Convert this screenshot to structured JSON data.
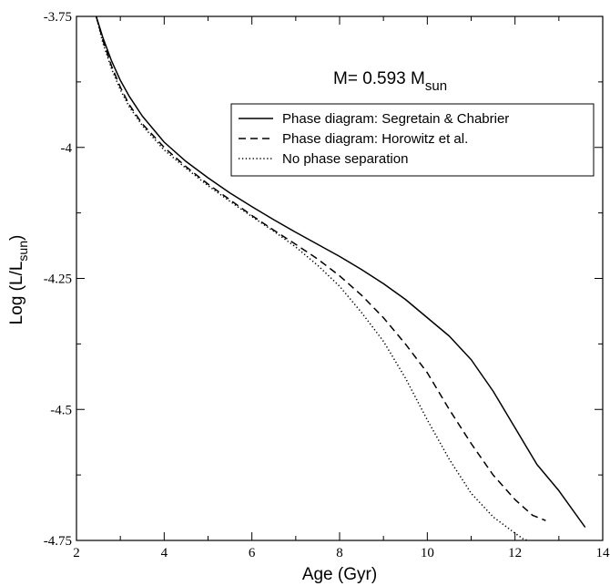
{
  "chart_data": {
    "type": "line",
    "xlabel": "Age (Gyr)",
    "ylabel_main": "Log (L/L",
    "ylabel_sub": "sun",
    "ylabel_close": ")",
    "xlim": [
      2,
      14
    ],
    "ylim": [
      -4.75,
      -3.75
    ],
    "x_ticks": [
      2,
      4,
      6,
      8,
      10,
      12,
      14
    ],
    "y_ticks": [
      -3.75,
      -4,
      -4.25,
      -4.5,
      -4.75
    ],
    "x_tick_labels": [
      "2",
      "4",
      "6",
      "8",
      "10",
      "12",
      "14"
    ],
    "y_tick_labels": [
      "-3.75",
      "-4",
      "-4.25",
      "-4.5",
      "-4.75"
    ],
    "annotation_main": "M= 0.593 M",
    "annotation_sub": "sun",
    "legend_position": "top-right",
    "series": [
      {
        "name": "Phase diagram: Segretain & Chabrier",
        "style": "solid",
        "color": "#000000",
        "points": [
          [
            2.45,
            -3.75
          ],
          [
            2.6,
            -3.79
          ],
          [
            2.8,
            -3.835
          ],
          [
            3.0,
            -3.872
          ],
          [
            3.2,
            -3.902
          ],
          [
            3.5,
            -3.94
          ],
          [
            4.0,
            -3.99
          ],
          [
            4.5,
            -4.027
          ],
          [
            5.0,
            -4.058
          ],
          [
            5.5,
            -4.087
          ],
          [
            6.0,
            -4.113
          ],
          [
            6.5,
            -4.138
          ],
          [
            7.0,
            -4.162
          ],
          [
            7.5,
            -4.185
          ],
          [
            8.0,
            -4.208
          ],
          [
            8.5,
            -4.233
          ],
          [
            9.0,
            -4.26
          ],
          [
            9.5,
            -4.29
          ],
          [
            10.0,
            -4.325
          ],
          [
            10.5,
            -4.36
          ],
          [
            11.0,
            -4.405
          ],
          [
            11.5,
            -4.465
          ],
          [
            12.0,
            -4.535
          ],
          [
            12.5,
            -4.605
          ],
          [
            13.0,
            -4.655
          ],
          [
            13.6,
            -4.725
          ]
        ]
      },
      {
        "name": "Phase diagram: Horowitz et al.",
        "style": "dashed",
        "color": "#000000",
        "points": [
          [
            2.45,
            -3.75
          ],
          [
            2.6,
            -3.795
          ],
          [
            2.8,
            -3.845
          ],
          [
            3.0,
            -3.885
          ],
          [
            3.2,
            -3.918
          ],
          [
            3.5,
            -3.955
          ],
          [
            4.0,
            -4.0
          ],
          [
            4.5,
            -4.037
          ],
          [
            5.0,
            -4.07
          ],
          [
            5.5,
            -4.1
          ],
          [
            6.0,
            -4.13
          ],
          [
            6.5,
            -4.158
          ],
          [
            7.0,
            -4.185
          ],
          [
            7.5,
            -4.213
          ],
          [
            8.0,
            -4.245
          ],
          [
            8.5,
            -4.282
          ],
          [
            9.0,
            -4.325
          ],
          [
            9.5,
            -4.375
          ],
          [
            10.0,
            -4.43
          ],
          [
            10.5,
            -4.5
          ],
          [
            11.0,
            -4.565
          ],
          [
            11.5,
            -4.625
          ],
          [
            12.0,
            -4.672
          ],
          [
            12.4,
            -4.702
          ],
          [
            12.7,
            -4.712
          ]
        ]
      },
      {
        "name": "No phase separation",
        "style": "dotted",
        "color": "#000000",
        "points": [
          [
            2.45,
            -3.75
          ],
          [
            2.6,
            -3.8
          ],
          [
            2.8,
            -3.85
          ],
          [
            3.0,
            -3.89
          ],
          [
            3.2,
            -3.922
          ],
          [
            3.5,
            -3.958
          ],
          [
            4.0,
            -4.005
          ],
          [
            4.5,
            -4.04
          ],
          [
            5.0,
            -4.073
          ],
          [
            5.5,
            -4.103
          ],
          [
            6.0,
            -4.132
          ],
          [
            6.5,
            -4.16
          ],
          [
            7.0,
            -4.19
          ],
          [
            7.5,
            -4.225
          ],
          [
            8.0,
            -4.265
          ],
          [
            8.5,
            -4.315
          ],
          [
            9.0,
            -4.37
          ],
          [
            9.5,
            -4.44
          ],
          [
            10.0,
            -4.52
          ],
          [
            10.5,
            -4.595
          ],
          [
            11.0,
            -4.66
          ],
          [
            11.5,
            -4.705
          ],
          [
            11.9,
            -4.73
          ],
          [
            12.2,
            -4.748
          ],
          [
            12.3,
            -4.75
          ]
        ]
      }
    ]
  }
}
